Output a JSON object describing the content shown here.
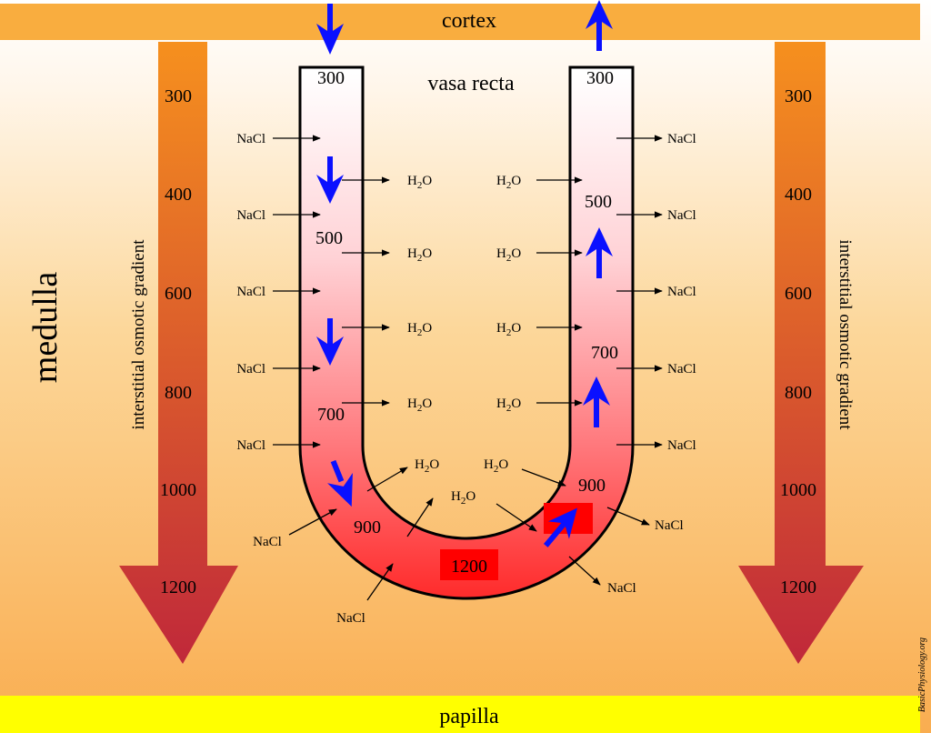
{
  "colors": {
    "cortex_band": "#f9ad3f",
    "papilla_band": "#ffff00",
    "gradient_top": "#f6901e",
    "gradient_bottom": "#c0283a",
    "vessel_fill_top": "#ffffff",
    "vessel_fill_bottom": "#ff2a2a",
    "flow_arrow": "#0a10ff",
    "highlight_box": "#ff0000"
  },
  "labels": {
    "cortex": "cortex",
    "papilla": "papilla",
    "medulla": "medulla",
    "vasa_recta": "vasa recta",
    "gradient_left": "interstitial osmotic gradient",
    "gradient_right": "interstitial osmotic gradient",
    "watermark": "BasicPhysiology.org"
  },
  "gradient_scale": [
    "300",
    "400",
    "600",
    "800",
    "1000",
    "1200"
  ],
  "vessel_values": {
    "desc_top": "300",
    "asc_top": "300",
    "desc_500": "500",
    "desc_700": "700",
    "desc_900": "900",
    "asc_500": "500",
    "asc_700": "700",
    "asc_900": "900",
    "bottom": "1200"
  },
  "solutes": {
    "nacl": "NaCl",
    "water": "H",
    "water_sub": "2",
    "water_tail": "O"
  }
}
